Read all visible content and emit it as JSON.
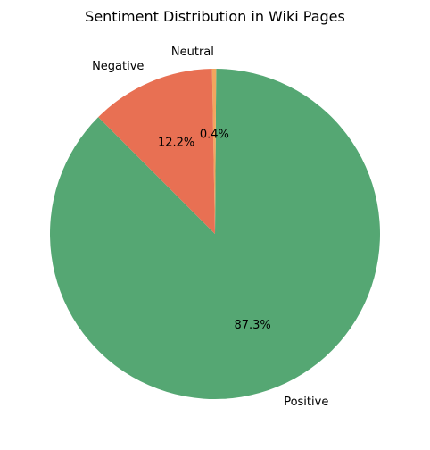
{
  "chart_data": {
    "type": "pie",
    "title": "Sentiment Distribution in Wiki Pages",
    "start_angle_deg": 135,
    "direction": "counterclockwise",
    "slices": [
      {
        "label": "Positive",
        "value": 87.3,
        "pct_label": "87.3%",
        "color": "#55a773"
      },
      {
        "label": "Neutral",
        "value": 0.4,
        "pct_label": "0.4%",
        "color": "#f2a65e"
      },
      {
        "label": "Negative",
        "value": 12.2,
        "pct_label": "12.2%",
        "color": "#e87053"
      }
    ]
  }
}
